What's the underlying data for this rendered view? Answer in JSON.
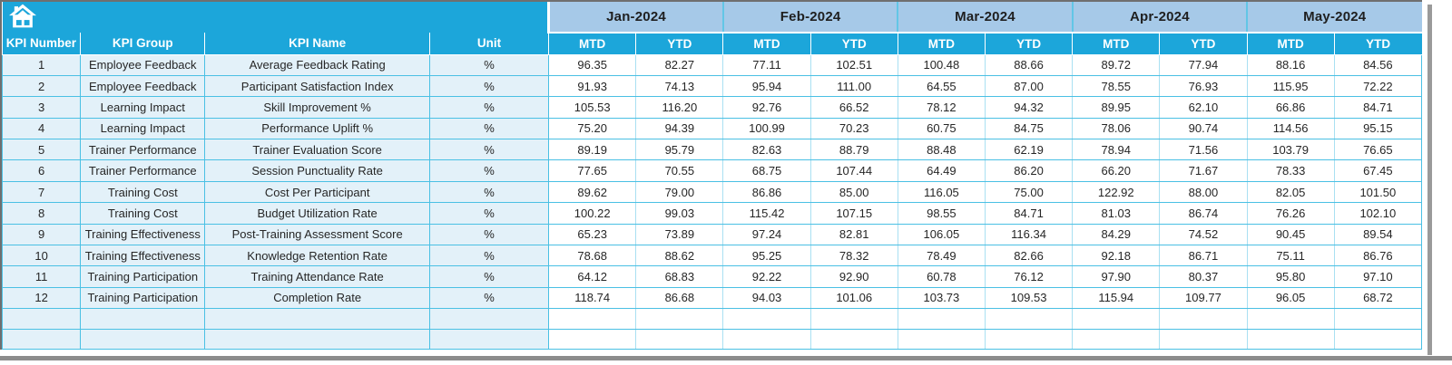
{
  "header": {
    "months": [
      "Jan-2024",
      "Feb-2024",
      "Mar-2024",
      "Apr-2024",
      "May-2024"
    ],
    "sub_columns": [
      "MTD",
      "YTD"
    ],
    "left_columns": [
      "KPI Number",
      "KPI Group",
      "KPI Name",
      "Unit"
    ]
  },
  "toolbar": {
    "home_icon": "home-icon"
  },
  "colors": {
    "cyan_header": "#1CA6DA",
    "month_band": "#A6C9E8",
    "row_tint": "#E3F1F9",
    "grid": "#4AC0E4",
    "grid_light": "#A9E0F2",
    "outer_border": "#6F6F6F",
    "header_text": "#FFFFFF",
    "month_text": "#1F1F1F",
    "cell_text": "#262626"
  },
  "rows": [
    {
      "number": "1",
      "group": "Employee Feedback",
      "name": "Average Feedback Rating",
      "unit": "%",
      "values": [
        "96.35",
        "82.27",
        "77.11",
        "102.51",
        "100.48",
        "88.66",
        "89.72",
        "77.94",
        "88.16",
        "84.56"
      ]
    },
    {
      "number": "2",
      "group": "Employee Feedback",
      "name": "Participant Satisfaction Index",
      "unit": "%",
      "values": [
        "91.93",
        "74.13",
        "95.94",
        "111.00",
        "64.55",
        "87.00",
        "78.55",
        "76.93",
        "115.95",
        "72.22"
      ]
    },
    {
      "number": "3",
      "group": "Learning Impact",
      "name": "Skill Improvement %",
      "unit": "%",
      "values": [
        "105.53",
        "116.20",
        "92.76",
        "66.52",
        "78.12",
        "94.32",
        "89.95",
        "62.10",
        "66.86",
        "84.71"
      ]
    },
    {
      "number": "4",
      "group": "Learning Impact",
      "name": "Performance Uplift %",
      "unit": "%",
      "values": [
        "75.20",
        "94.39",
        "100.99",
        "70.23",
        "60.75",
        "84.75",
        "78.06",
        "90.74",
        "114.56",
        "95.15"
      ]
    },
    {
      "number": "5",
      "group": "Trainer Performance",
      "name": "Trainer Evaluation Score",
      "unit": "%",
      "values": [
        "89.19",
        "95.79",
        "82.63",
        "88.79",
        "88.48",
        "62.19",
        "78.94",
        "71.56",
        "103.79",
        "76.65"
      ]
    },
    {
      "number": "6",
      "group": "Trainer Performance",
      "name": "Session Punctuality Rate",
      "unit": "%",
      "values": [
        "77.65",
        "70.55",
        "68.75",
        "107.44",
        "64.49",
        "86.20",
        "66.20",
        "71.67",
        "78.33",
        "67.45"
      ]
    },
    {
      "number": "7",
      "group": "Training Cost",
      "name": "Cost Per Participant",
      "unit": "%",
      "values": [
        "89.62",
        "79.00",
        "86.86",
        "85.00",
        "116.05",
        "75.00",
        "122.92",
        "88.00",
        "82.05",
        "101.50"
      ]
    },
    {
      "number": "8",
      "group": "Training Cost",
      "name": "Budget Utilization Rate",
      "unit": "%",
      "values": [
        "100.22",
        "99.03",
        "115.42",
        "107.15",
        "98.55",
        "84.71",
        "81.03",
        "86.74",
        "76.26",
        "102.10"
      ]
    },
    {
      "number": "9",
      "group": "Training Effectiveness",
      "name": "Post-Training Assessment Score",
      "unit": "%",
      "values": [
        "65.23",
        "73.89",
        "97.24",
        "82.81",
        "106.05",
        "116.34",
        "84.29",
        "74.52",
        "90.45",
        "89.54"
      ]
    },
    {
      "number": "10",
      "group": "Training Effectiveness",
      "name": "Knowledge Retention Rate",
      "unit": "%",
      "values": [
        "78.68",
        "88.62",
        "95.25",
        "78.32",
        "78.49",
        "82.66",
        "92.18",
        "86.71",
        "75.11",
        "86.76"
      ]
    },
    {
      "number": "11",
      "group": "Training Participation",
      "name": "Training Attendance Rate",
      "unit": "%",
      "values": [
        "64.12",
        "68.83",
        "92.22",
        "92.90",
        "60.78",
        "76.12",
        "97.90",
        "80.37",
        "95.80",
        "97.10"
      ]
    },
    {
      "number": "12",
      "group": "Training Participation",
      "name": "Completion Rate",
      "unit": "%",
      "values": [
        "118.74",
        "86.68",
        "94.03",
        "101.06",
        "103.73",
        "109.53",
        "115.94",
        "109.77",
        "96.05",
        "68.72"
      ]
    }
  ],
  "layout_hints": {
    "empty_rows": 2
  }
}
